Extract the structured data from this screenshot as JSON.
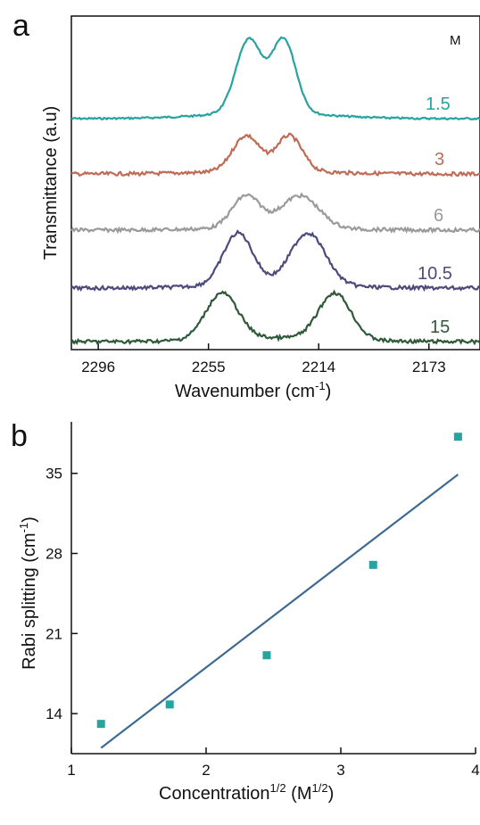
{
  "chart_data": [
    {
      "panel": "a",
      "type": "line",
      "xlabel": "Wavenumber (cm",
      "xlabel_sup": "-1",
      "xlabel_suffix": ")",
      "ylabel": "Transmittance (a.u)",
      "x_ticks": [
        2296,
        2255,
        2214,
        2173
      ],
      "xlim": [
        2306,
        2154
      ],
      "unit_label": "M",
      "series": [
        {
          "name": "1.5",
          "color": "#27a3a0",
          "offset": 0,
          "amp": 82,
          "p1": 2240,
          "p2": 2227,
          "w1": 4.8,
          "w2": 4.5,
          "ratio": 1.0
        },
        {
          "name": "3",
          "color": "#c06b55",
          "offset": 62,
          "amp": 40,
          "p1": 2241,
          "p2": 2225,
          "w1": 5.0,
          "w2": 4.8,
          "ratio": 1.0
        },
        {
          "name": "6",
          "color": "#9a9a9a",
          "offset": 125,
          "amp": 36,
          "p1": 2241,
          "p2": 2221,
          "w1": 5.2,
          "w2": 7.0,
          "ratio": 1.0
        },
        {
          "name": "10.5",
          "color": "#4d4a7c",
          "offset": 190,
          "amp": 58,
          "p1": 2244,
          "p2": 2218,
          "w1": 5.5,
          "w2": 6.5,
          "ratio": 1.0
        },
        {
          "name": "15",
          "color": "#2f5a3a",
          "offset": 250,
          "amp": 52,
          "p1": 2250,
          "p2": 2208,
          "w1": 6.0,
          "w2": 6.0,
          "ratio": 1.0
        }
      ]
    },
    {
      "panel": "b",
      "type": "scatter",
      "xlabel": "Concentration",
      "xlabel_sup": "1/2",
      "xlabel_mid": " (M",
      "xlabel_sup2": "1/2",
      "xlabel_end": ")",
      "ylabel": "Rabi splitting (cm",
      "ylabel_sup": "-1",
      "ylabel_end": ")",
      "xlim": [
        1,
        4
      ],
      "ylim": [
        10.5,
        39.5
      ],
      "x_ticks": [
        1,
        2,
        3,
        4
      ],
      "y_ticks": [
        14,
        21,
        28,
        35
      ],
      "points": [
        {
          "x": 1.22,
          "y": 13.1
        },
        {
          "x": 1.73,
          "y": 14.8
        },
        {
          "x": 2.45,
          "y": 19.1
        },
        {
          "x": 3.24,
          "y": 27.0
        },
        {
          "x": 3.87,
          "y": 38.2
        }
      ],
      "point_color": "#27a3a0",
      "fit": {
        "x1": 1.22,
        "y1": 11.0,
        "x2": 3.87,
        "y2": 34.9,
        "color": "#3d6a92"
      }
    }
  ]
}
